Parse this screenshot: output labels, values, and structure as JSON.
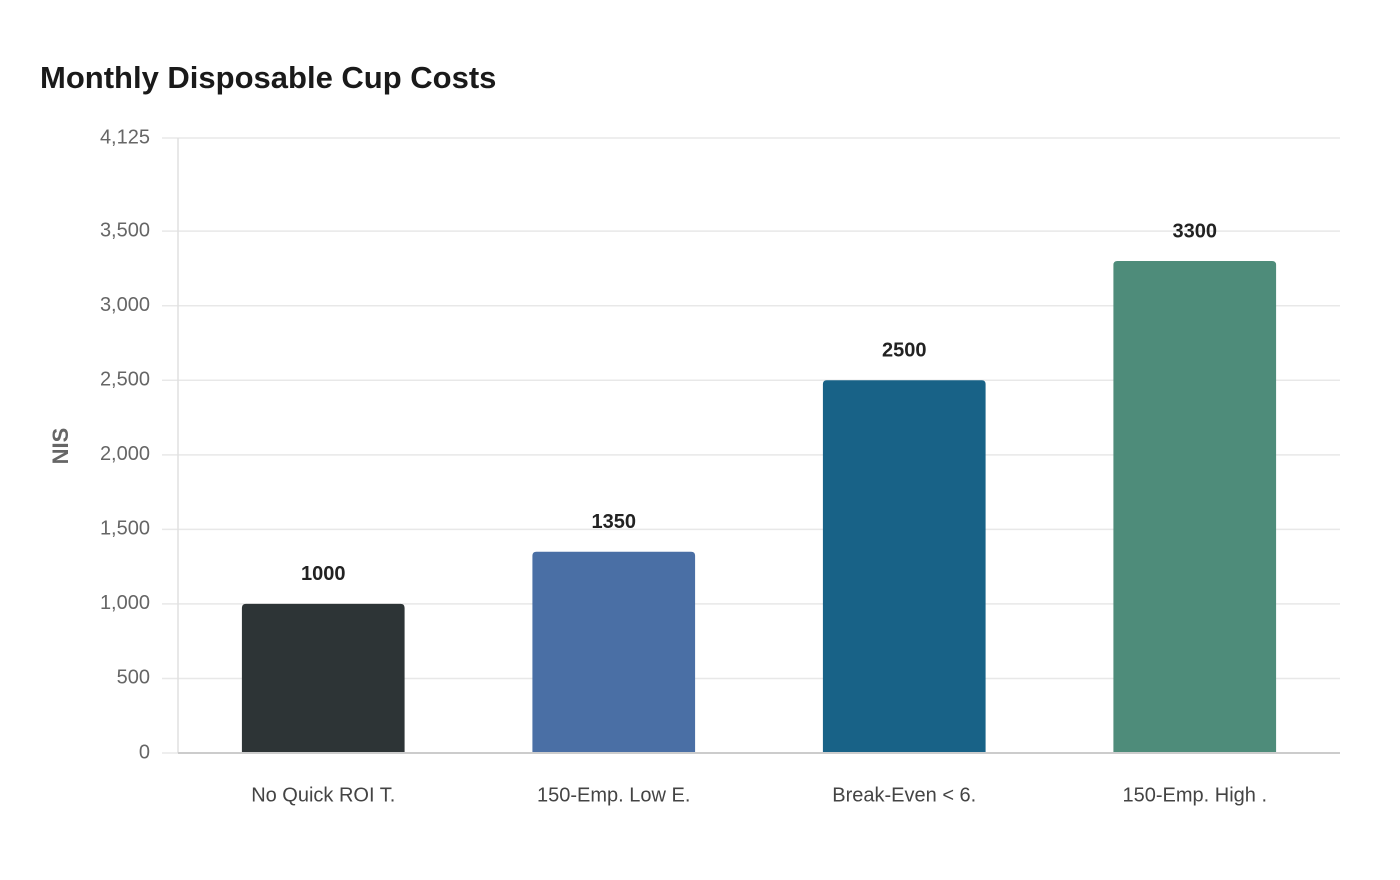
{
  "chart_data": {
    "type": "bar",
    "title": "Monthly Disposable Cup Costs",
    "y_label": "NIS",
    "categories": [
      "No Quick ROI T.",
      "150-Emp. Low E.",
      "Break-Even < 6.",
      "150-Emp. High ."
    ],
    "values": [
      1000,
      1350,
      2500,
      3300
    ],
    "colors": [
      "#2d3436",
      "#4a6fa5",
      "#186287",
      "#4e8c7a"
    ],
    "ylim": [
      0,
      4125
    ],
    "yticks": [
      0,
      500,
      {
        "value": 1000,
        "label": "1,000"
      },
      {
        "value": 1500,
        "label": "1,500"
      },
      {
        "value": 2000,
        "label": "2,000"
      },
      {
        "value": 2500,
        "label": "2,500"
      },
      {
        "value": 3000,
        "label": "3,000"
      },
      {
        "value": 3500,
        "label": "3,500"
      },
      {
        "value": 4125,
        "label": "4,125"
      }
    ],
    "grid": true
  }
}
